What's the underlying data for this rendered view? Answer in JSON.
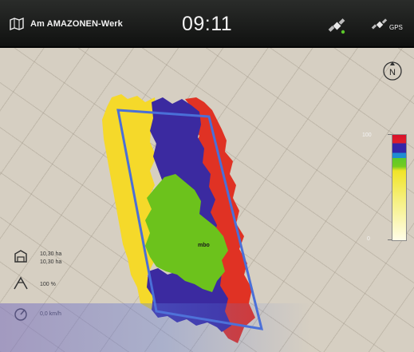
{
  "status_bar": {
    "title": "Am AMAZONEN-Werk",
    "time": "09:11",
    "gps_label": "GPS"
  },
  "legend": {
    "max_label": "100",
    "min_label": "0",
    "colors": [
      "#d8102a",
      "#3424a8",
      "#1e8cd2",
      "#5cc82a",
      "#f0e428",
      "#fffde8"
    ]
  },
  "info_panel": {
    "area_1": "10,30 ha",
    "area_2": "10,30 ha",
    "rate": "100 %",
    "speed": "0,0 km/h"
  },
  "map": {
    "center_label": "mbo",
    "zone_colors": {
      "yellow": "#f5d92a",
      "blue": "#3b2aa0",
      "red": "#e03224",
      "green": "#6cc21c",
      "boundary": "#4a6fd8"
    }
  },
  "icons": {
    "app": "map-icon",
    "satellite": "satellite-icon",
    "gps": "gps-icon",
    "north": "north-arrow-icon"
  }
}
